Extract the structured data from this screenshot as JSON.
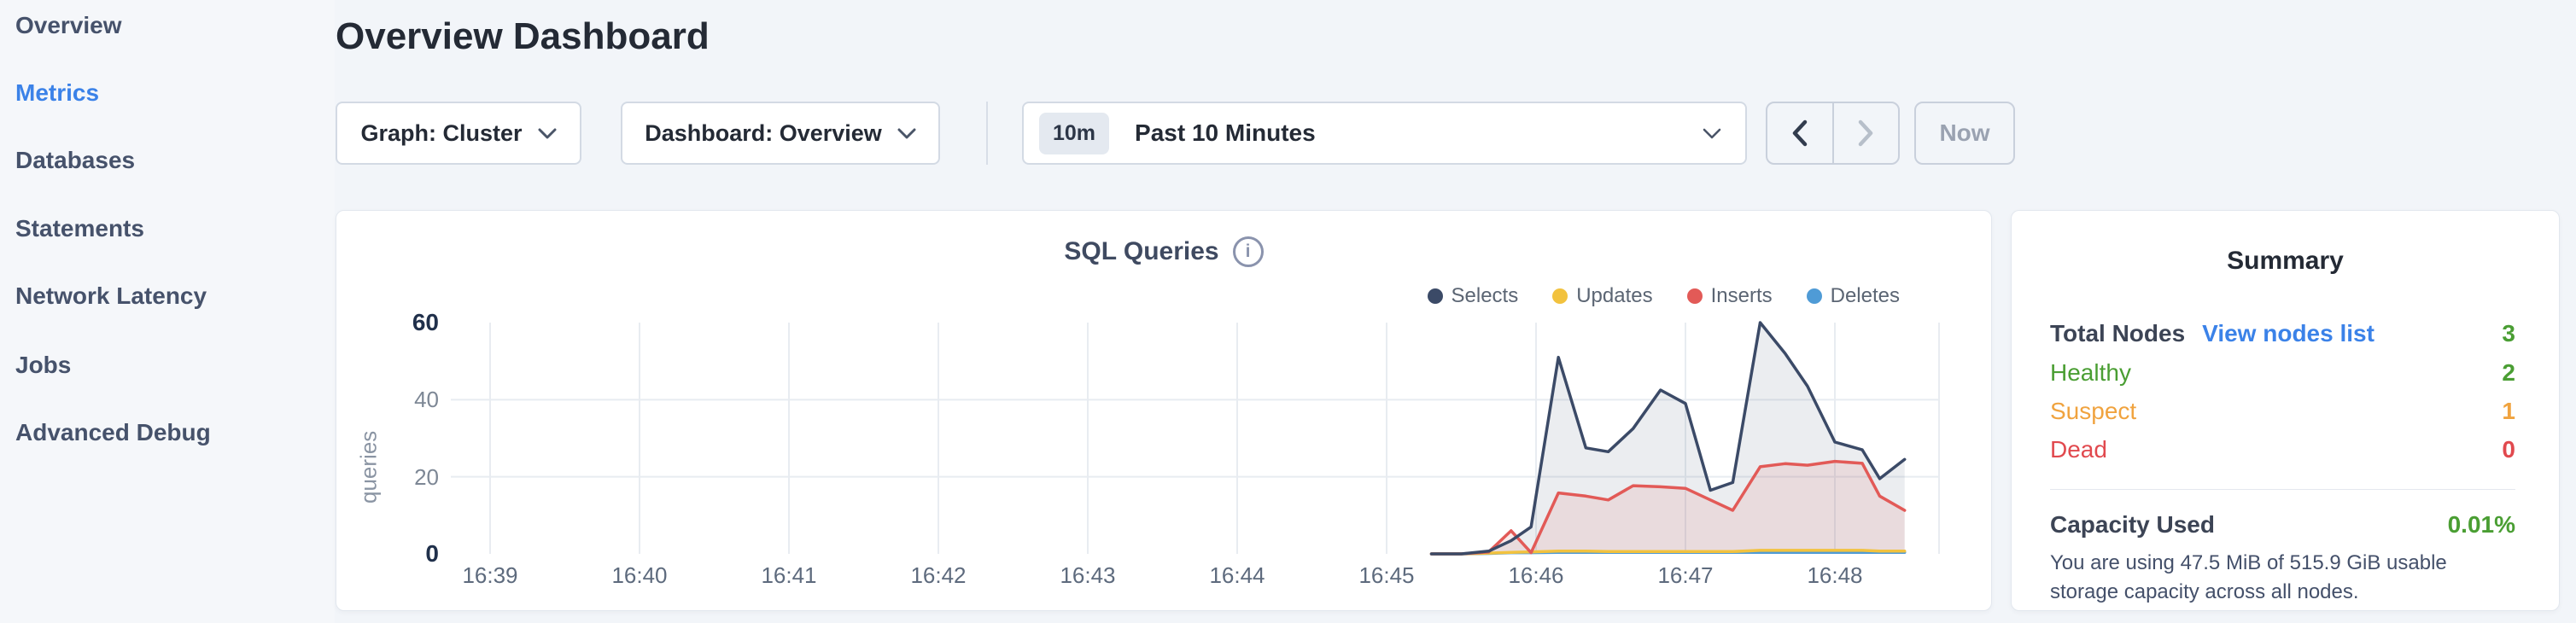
{
  "sidebar": {
    "items": [
      {
        "label": "Overview",
        "active": false
      },
      {
        "label": "Metrics",
        "active": true
      },
      {
        "label": "Databases",
        "active": false
      },
      {
        "label": "Statements",
        "active": false
      },
      {
        "label": "Network Latency",
        "active": false
      },
      {
        "label": "Jobs",
        "active": false
      },
      {
        "label": "Advanced Debug",
        "active": false
      }
    ]
  },
  "header": {
    "title": "Overview Dashboard"
  },
  "controls": {
    "graph_dropdown_label": "Graph: Cluster",
    "dashboard_dropdown_label": "Dashboard: Overview",
    "time_badge": "10m",
    "time_label": "Past 10 Minutes",
    "now_label": "Now"
  },
  "chart": {
    "info_glyph": "i"
  },
  "chart_data": {
    "type": "area",
    "title": "SQL Queries",
    "ylabel": "queries",
    "ylim": [
      0,
      60
    ],
    "yticks": [
      0,
      20,
      40,
      60
    ],
    "xticks": [
      "16:39",
      "16:40",
      "16:41",
      "16:42",
      "16:43",
      "16:44",
      "16:45",
      "16:46",
      "16:47",
      "16:48"
    ],
    "grid": {
      "horizontal_at": [
        20,
        40
      ],
      "vertical": "every minute tick"
    },
    "legend_position": "top-right",
    "x": [
      "16:45:18",
      "16:45:30",
      "16:45:41",
      "16:45:50",
      "16:45:58",
      "16:46:09",
      "16:46:20",
      "16:46:29",
      "16:46:39",
      "16:46:50",
      "16:47:00",
      "16:47:10",
      "16:47:19",
      "16:47:30",
      "16:47:40",
      "16:47:49",
      "16:48:00",
      "16:48:11",
      "16:48:18",
      "16:48:28"
    ],
    "series": [
      {
        "name": "Selects",
        "color": "#3b4a67",
        "fill": "rgba(59,74,103,0.10)",
        "values": [
          0,
          0,
          0.7,
          3.4,
          7,
          51,
          27.5,
          26.5,
          32.5,
          42.5,
          39,
          16.5,
          18.5,
          60,
          52,
          43.5,
          29,
          27,
          19.5,
          24.5
        ]
      },
      {
        "name": "Updates",
        "color": "#f2c23e",
        "fill": "rgba(242,194,62,0.10)",
        "values": [
          0,
          0,
          0.2,
          0.4,
          0.5,
          0.7,
          0.7,
          0.6,
          0.6,
          0.6,
          0.6,
          0.6,
          0.6,
          0.9,
          0.9,
          0.9,
          0.9,
          0.9,
          0.7,
          0.7
        ]
      },
      {
        "name": "Inserts",
        "color": "#e25a57",
        "fill": "rgba(226,90,87,0.12)",
        "values": [
          0,
          0,
          0.5,
          6,
          0.3,
          15.8,
          15,
          14,
          17.7,
          17.4,
          17,
          14,
          11.3,
          22.6,
          23.4,
          23,
          24,
          23.5,
          15,
          11.3
        ]
      },
      {
        "name": "Deletes",
        "color": "#4f9bd6",
        "fill": "rgba(79,155,214,0.10)",
        "values": [
          0,
          0,
          0.1,
          0.3,
          0.3,
          0.4,
          0.4,
          0.4,
          0.4,
          0.4,
          0.4,
          0.4,
          0.4,
          0.4,
          0.4,
          0.4,
          0.4,
          0.4,
          0.4,
          0.4
        ]
      }
    ]
  },
  "summary": {
    "title": "Summary",
    "total_nodes_label": "Total Nodes",
    "view_nodes_link": "View nodes list",
    "total_nodes_value": "3",
    "total_nodes_color": "#4a9e33",
    "node_rows": [
      {
        "label": "Healthy",
        "value": "2",
        "color": "#4a9e33"
      },
      {
        "label": "Suspect",
        "value": "1",
        "color": "#f0a33f"
      },
      {
        "label": "Dead",
        "value": "0",
        "color": "#e1494e"
      }
    ],
    "capacity_label": "Capacity Used",
    "capacity_value": "0.01%",
    "capacity_color": "#4a9e33",
    "capacity_description": "You are using 47.5 MiB of 515.9 GiB usable storage capacity across all nodes."
  }
}
